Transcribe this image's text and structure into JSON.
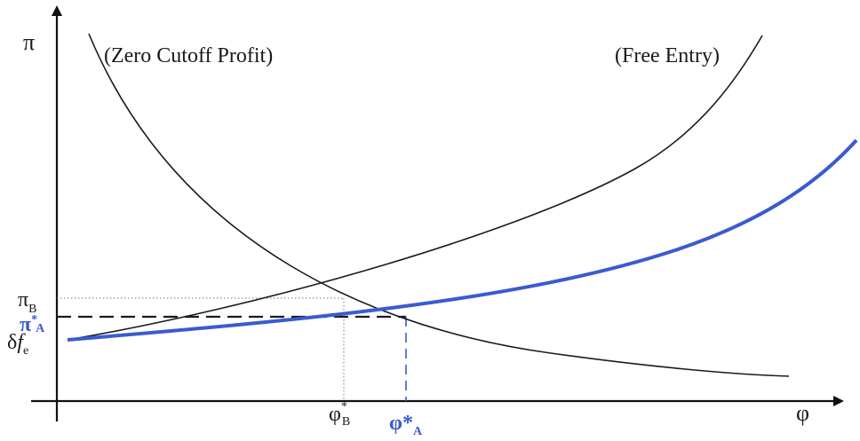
{
  "axes": {
    "y_label": "π",
    "x_label": "φ"
  },
  "curves": {
    "zero_cutoff_profit": {
      "label": "(Zero Cutoff Profit)"
    },
    "free_entry": {
      "label": "(Free Entry)"
    },
    "free_entry_A": {
      "color": "#3a5bd0"
    }
  },
  "y_ticks": {
    "pi_B": {
      "main": "π",
      "sub": "B"
    },
    "pi_A": {
      "main": "π",
      "sup": "*",
      "sub": "A"
    },
    "delta_fe": {
      "main": "δ",
      "f": "f",
      "sub": "e"
    }
  },
  "x_ticks": {
    "phi_B": {
      "main": "φ",
      "sup": "*",
      "sub": "B"
    },
    "phi_A": {
      "main": "φ*",
      "sub": "A"
    }
  },
  "colors": {
    "black_curve": "#1a1a1a",
    "blue_curve": "#3a5bd0",
    "guide": "#555555"
  }
}
